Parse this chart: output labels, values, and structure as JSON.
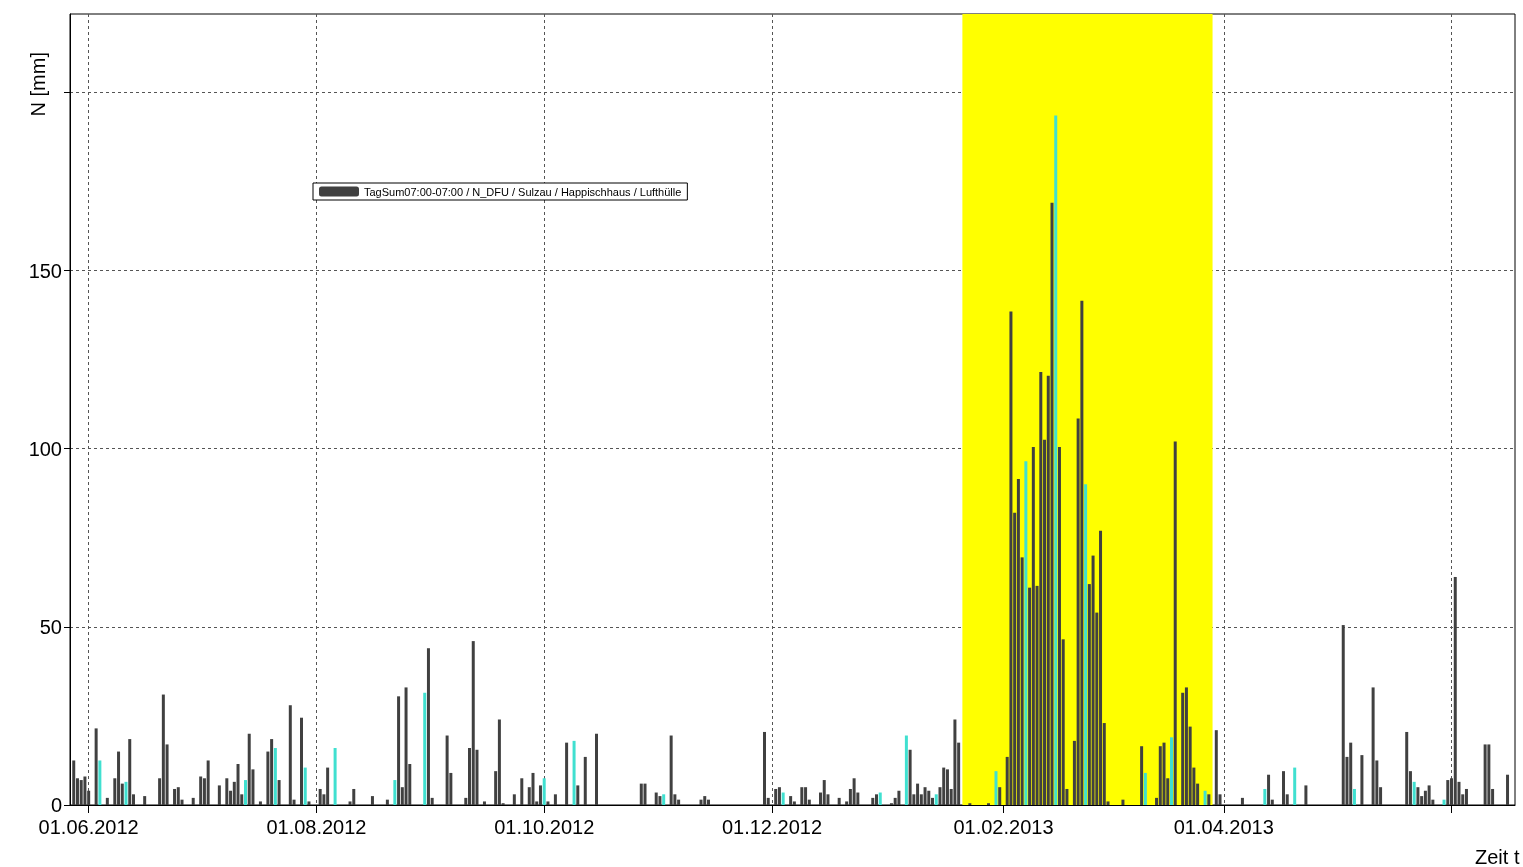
{
  "chart_data": {
    "type": "bar",
    "xlabel": "Zeit t",
    "ylabel": "N [mm]",
    "xlim": [
      "2012-05-27",
      "2013-06-18"
    ],
    "xticks": [
      {
        "value": "2012-06-01",
        "label": "01.06.2012"
      },
      {
        "value": "2012-08-01",
        "label": "01.08.2012"
      },
      {
        "value": "2012-10-01",
        "label": "01.10.2012"
      },
      {
        "value": "2012-12-01",
        "label": "01.12.2012"
      },
      {
        "value": "2013-02-01",
        "label": "01.02.2013"
      },
      {
        "value": "2013-04-01",
        "label": "01.04.2013"
      },
      {
        "value": "2013-06-01",
        "label": null
      }
    ],
    "ylim": [
      0,
      222
    ],
    "yticks": [
      0,
      50,
      100,
      150,
      {
        "value": 200,
        "label": null
      }
    ],
    "grid": true,
    "legend": "top left",
    "bands": [
      {
        "axis": "x",
        "from": "2013-01-21",
        "to": "2013-03-29",
        "color": "#ffff00"
      }
    ],
    "series": [
      {
        "name": "TagSum07:00-07:00 / N_DFU / Sulzau / Happischhaus / Lufthülle",
        "color": "#404040",
        "x": [
          "2012-05-28",
          "2012-05-29",
          "2012-05-30",
          "2012-05-31",
          "2012-06-01",
          "2012-06-03",
          "2012-06-04",
          "2012-06-06",
          "2012-06-08",
          "2012-06-09",
          "2012-06-10",
          "2012-06-11",
          "2012-06-12",
          "2012-06-13",
          "2012-06-16",
          "2012-06-20",
          "2012-06-21",
          "2012-06-22",
          "2012-06-24",
          "2012-06-25",
          "2012-06-26",
          "2012-06-29",
          "2012-07-01",
          "2012-07-02",
          "2012-07-03",
          "2012-07-06",
          "2012-07-08",
          "2012-07-09",
          "2012-07-10",
          "2012-07-11",
          "2012-07-12",
          "2012-07-13",
          "2012-07-14",
          "2012-07-15",
          "2012-07-17",
          "2012-07-19",
          "2012-07-20",
          "2012-07-21",
          "2012-07-22",
          "2012-07-25",
          "2012-07-26",
          "2012-07-28",
          "2012-07-29",
          "2012-07-30",
          "2012-08-02",
          "2012-08-03",
          "2012-08-04",
          "2012-08-06",
          "2012-08-10",
          "2012-08-11",
          "2012-08-16",
          "2012-08-20",
          "2012-08-22",
          "2012-08-23",
          "2012-08-24",
          "2012-08-25",
          "2012-08-26",
          "2012-08-30",
          "2012-08-31",
          "2012-09-01",
          "2012-09-05",
          "2012-09-06",
          "2012-09-10",
          "2012-09-11",
          "2012-09-12",
          "2012-09-13",
          "2012-09-15",
          "2012-09-18",
          "2012-09-19",
          "2012-09-20",
          "2012-09-23",
          "2012-09-25",
          "2012-09-27",
          "2012-09-28",
          "2012-09-29",
          "2012-09-30",
          "2012-10-01",
          "2012-10-02",
          "2012-10-04",
          "2012-10-07",
          "2012-10-09",
          "2012-10-10",
          "2012-10-12",
          "2012-10-15",
          "2012-10-27",
          "2012-10-28",
          "2012-10-31",
          "2012-11-01",
          "2012-11-02",
          "2012-11-04",
          "2012-11-05",
          "2012-11-06",
          "2012-11-12",
          "2012-11-13",
          "2012-11-14",
          "2012-11-29",
          "2012-11-30",
          "2012-12-02",
          "2012-12-03",
          "2012-12-04",
          "2012-12-06",
          "2012-12-07",
          "2012-12-09",
          "2012-12-10",
          "2012-12-11",
          "2012-12-14",
          "2012-12-15",
          "2012-12-16",
          "2012-12-19",
          "2012-12-21",
          "2012-12-22",
          "2012-12-23",
          "2012-12-24",
          "2012-12-28",
          "2012-12-29",
          "2012-12-30",
          "2013-01-02",
          "2013-01-03",
          "2013-01-04",
          "2013-01-06",
          "2013-01-07",
          "2013-01-08",
          "2013-01-09",
          "2013-01-10",
          "2013-01-11",
          "2013-01-12",
          "2013-01-13",
          "2013-01-14",
          "2013-01-15",
          "2013-01-16",
          "2013-01-17",
          "2013-01-18",
          "2013-01-19",
          "2013-01-20",
          "2013-01-23",
          "2013-01-28",
          "2013-01-30",
          "2013-01-31",
          "2013-02-02",
          "2013-02-03",
          "2013-02-04",
          "2013-02-05",
          "2013-02-06",
          "2013-02-07",
          "2013-02-08",
          "2013-02-09",
          "2013-02-10",
          "2013-02-11",
          "2013-02-12",
          "2013-02-13",
          "2013-02-14",
          "2013-02-15",
          "2013-02-16",
          "2013-02-17",
          "2013-02-18",
          "2013-02-20",
          "2013-02-21",
          "2013-02-22",
          "2013-02-23",
          "2013-02-24",
          "2013-02-25",
          "2013-02-26",
          "2013-02-27",
          "2013-02-28",
          "2013-03-01",
          "2013-03-05",
          "2013-03-10",
          "2013-03-11",
          "2013-03-14",
          "2013-03-15",
          "2013-03-16",
          "2013-03-17",
          "2013-03-18",
          "2013-03-19",
          "2013-03-21",
          "2013-03-22",
          "2013-03-23",
          "2013-03-24",
          "2013-03-25",
          "2013-03-27",
          "2013-03-28",
          "2013-03-30",
          "2013-03-31",
          "2013-04-06",
          "2013-04-12",
          "2013-04-13",
          "2013-04-14",
          "2013-04-17",
          "2013-04-18",
          "2013-04-20",
          "2013-04-23",
          "2013-05-03",
          "2013-05-04",
          "2013-05-05",
          "2013-05-06",
          "2013-05-08",
          "2013-05-11",
          "2013-05-12",
          "2013-05-13",
          "2013-05-20",
          "2013-05-21",
          "2013-05-22",
          "2013-05-23",
          "2013-05-24",
          "2013-05-25",
          "2013-05-26",
          "2013-05-27",
          "2013-05-30",
          "2013-05-31",
          "2013-06-01",
          "2013-06-02",
          "2013-06-03",
          "2013-06-04",
          "2013-06-05",
          "2013-06-10",
          "2013-06-11",
          "2013-06-12",
          "2013-06-16"
        ],
        "values": [
          12.5,
          7.5,
          7,
          8,
          4,
          21.5,
          12.5,
          2,
          7.5,
          15,
          6,
          6.5,
          18.5,
          3,
          2.5,
          7.5,
          31,
          17,
          4.5,
          5,
          1.5,
          2,
          8,
          7.5,
          12.5,
          5.5,
          7.5,
          4,
          6.5,
          11.5,
          3,
          7,
          20,
          10,
          1,
          15,
          18.5,
          16,
          7,
          28,
          1.5,
          24.5,
          10.5,
          1,
          4.5,
          3,
          10.5,
          16,
          1,
          4.5,
          2.5,
          1.5,
          7,
          30.5,
          5,
          33,
          11.5,
          31.5,
          44,
          2,
          19.5,
          9,
          2,
          16,
          46,
          15.5,
          1,
          9.5,
          24,
          0.5,
          3,
          7.5,
          5,
          9,
          1,
          5.5,
          7.5,
          1,
          3,
          17.5,
          18,
          5.5,
          13.5,
          20,
          6,
          6,
          3.5,
          2.5,
          3,
          19.5,
          3,
          1.5,
          1.5,
          2.5,
          1.5,
          20.5,
          2,
          4.5,
          5,
          3.5,
          2.5,
          1,
          5,
          5,
          1.5,
          3.5,
          7,
          3,
          2,
          1,
          4.5,
          7.5,
          3.5,
          2,
          3,
          3.5,
          0.5,
          2,
          4,
          19.5,
          15.5,
          3,
          6,
          3,
          5,
          4,
          2,
          3,
          5,
          10.5,
          10,
          4.5,
          24,
          17.5,
          0.5,
          0.5,
          9.5,
          5,
          13.5,
          138.5,
          82,
          91.5,
          69.5,
          96.5,
          61,
          100.5,
          61.5,
          121.5,
          102.5,
          120.5,
          169,
          193.5,
          100.5,
          46.5,
          4.5,
          18,
          108.5,
          141.5,
          90,
          62,
          70,
          54,
          77,
          23,
          1,
          1.5,
          16.5,
          9,
          2,
          16.5,
          17.5,
          7.5,
          19,
          102,
          31.5,
          33,
          22,
          10.5,
          6,
          4,
          3,
          21,
          3,
          2,
          4.5,
          8.5,
          1.5,
          9.5,
          3,
          10.5,
          5.5,
          50.5,
          13.5,
          17.5,
          4.5,
          14,
          33,
          12.5,
          5,
          20.5,
          9.5,
          6.5,
          5,
          2.5,
          4,
          5.5,
          1.5,
          1.5,
          7,
          7.5,
          64,
          6.5,
          3,
          4.5,
          17,
          17,
          4.5,
          8.5
        ],
        "colors": [
          "#404040",
          "#404040",
          "#404040",
          "#404040",
          "#404040",
          "#404040",
          "#40e0d0",
          "#404040",
          "#404040",
          "#404040",
          "#404040",
          "#40e0d0",
          "#404040",
          "#404040",
          "#404040",
          "#404040",
          "#404040",
          "#404040",
          "#404040",
          "#404040",
          "#404040",
          "#404040",
          "#404040",
          "#404040",
          "#404040",
          "#404040",
          "#404040",
          "#404040",
          "#404040",
          "#404040",
          "#404040",
          "#40e0d0",
          "#404040",
          "#404040",
          "#404040",
          "#404040",
          "#404040",
          "#40e0d0",
          "#404040",
          "#404040",
          "#404040",
          "#404040",
          "#40e0d0",
          "#404040",
          "#404040",
          "#404040",
          "#404040",
          "#40e0d0",
          "#404040",
          "#404040",
          "#404040",
          "#404040",
          "#40e0d0",
          "#404040",
          "#404040",
          "#404040",
          "#404040",
          "#40e0d0",
          "#404040",
          "#404040",
          "#404040",
          "#404040",
          "#404040",
          "#404040",
          "#404040",
          "#404040",
          "#404040",
          "#404040",
          "#404040",
          "#404040",
          "#404040",
          "#404040",
          "#404040",
          "#404040",
          "#404040",
          "#404040",
          "#40e0d0",
          "#404040",
          "#404040",
          "#404040",
          "#40e0d0",
          "#404040",
          "#404040",
          "#404040",
          "#404040",
          "#404040",
          "#404040",
          "#404040",
          "#40e0d0",
          "#404040",
          "#404040",
          "#404040",
          "#404040",
          "#404040",
          "#404040",
          "#404040",
          "#404040",
          "#404040",
          "#404040",
          "#40e0d0",
          "#404040",
          "#404040",
          "#404040",
          "#404040",
          "#404040",
          "#404040",
          "#404040",
          "#404040",
          "#404040",
          "#404040",
          "#404040",
          "#404040",
          "#404040",
          "#404040",
          "#404040",
          "#40e0d0",
          "#404040",
          "#404040",
          "#404040",
          "#40e0d0",
          "#404040",
          "#404040",
          "#404040",
          "#404040",
          "#404040",
          "#404040",
          "#404040",
          "#40e0d0",
          "#404040",
          "#404040",
          "#404040",
          "#404040",
          "#404040",
          "#404040",
          "#404040",
          "#404040",
          "#40e0d0",
          "#404040",
          "#404040",
          "#404040",
          "#404040",
          "#404040",
          "#404040",
          "#40e0d0",
          "#404040",
          "#404040",
          "#404040",
          "#404040",
          "#404040",
          "#404040",
          "#404040",
          "#40e0d0",
          "#404040",
          "#404040",
          "#404040",
          "#404040",
          "#404040",
          "#404040",
          "#40e0d0",
          "#404040",
          "#404040",
          "#404040",
          "#404040",
          "#404040",
          "#404040",
          "#404040",
          "#404040",
          "#40e0d0",
          "#404040",
          "#404040",
          "#404040",
          "#404040",
          "#40e0d0",
          "#404040",
          "#404040",
          "#404040",
          "#404040",
          "#404040",
          "#404040",
          "#40e0d0",
          "#404040",
          "#404040",
          "#404040",
          "#404040",
          "#40e0d0",
          "#404040",
          "#404040",
          "#404040",
          "#404040",
          "#40e0d0",
          "#404040",
          "#404040",
          "#404040",
          "#404040",
          "#40e0d0",
          "#404040",
          "#404040",
          "#404040",
          "#404040",
          "#404040",
          "#404040",
          "#40e0d0",
          "#404040",
          "#404040",
          "#404040",
          "#404040",
          "#404040",
          "#40e0d0",
          "#404040",
          "#404040",
          "#404040",
          "#404040",
          "#404040",
          "#404040",
          "#404040",
          "#404040",
          "#404040",
          "#404040"
        ]
      }
    ]
  }
}
